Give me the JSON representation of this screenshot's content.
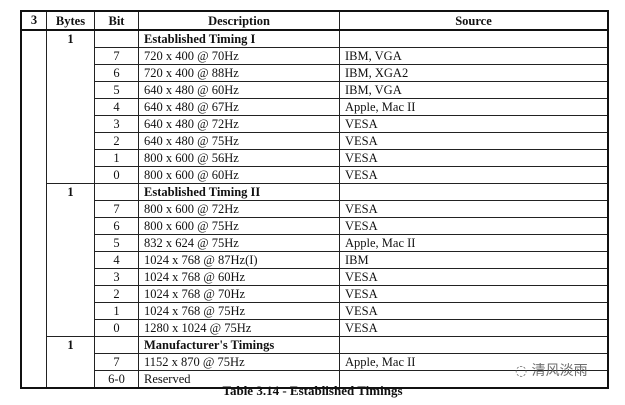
{
  "headers": [
    "3",
    "Bytes",
    "Bit",
    "Description",
    "Source"
  ],
  "groups": [
    {
      "bytes": "1",
      "title": "Established Timing I",
      "rows": [
        {
          "bit": "7",
          "desc": "720 x 400 @ 70Hz",
          "source": "IBM, VGA"
        },
        {
          "bit": "6",
          "desc": "720 x 400 @ 88Hz",
          "source": "IBM, XGA2"
        },
        {
          "bit": "5",
          "desc": "640 x 480 @ 60Hz",
          "source": "IBM, VGA"
        },
        {
          "bit": "4",
          "desc": "640 x 480 @ 67Hz",
          "source": "Apple, Mac II"
        },
        {
          "bit": "3",
          "desc": "640 x 480 @ 72Hz",
          "source": "VESA"
        },
        {
          "bit": "2",
          "desc": "640 x 480 @ 75Hz",
          "source": "VESA"
        },
        {
          "bit": "1",
          "desc": "800 x 600 @ 56Hz",
          "source": "VESA"
        },
        {
          "bit": "0",
          "desc": "800 x 600 @ 60Hz",
          "source": "VESA"
        }
      ]
    },
    {
      "bytes": "1",
      "title": "Established Timing II",
      "rows": [
        {
          "bit": "7",
          "desc": "800 x 600 @ 72Hz",
          "source": "VESA"
        },
        {
          "bit": "6",
          "desc": "800 x 600 @ 75Hz",
          "source": "VESA"
        },
        {
          "bit": "5",
          "desc": "832 x 624 @ 75Hz",
          "source": "Apple, Mac II"
        },
        {
          "bit": "4",
          "desc": "1024 x 768 @ 87Hz(I)",
          "source": "IBM"
        },
        {
          "bit": "3",
          "desc": "1024 x 768 @ 60Hz",
          "source": "VESA"
        },
        {
          "bit": "2",
          "desc": "1024 x 768 @ 70Hz",
          "source": "VESA"
        },
        {
          "bit": "1",
          "desc": "1024 x 768 @ 75Hz",
          "source": "VESA"
        },
        {
          "bit": "0",
          "desc": "1280 x 1024 @ 75Hz",
          "source": "VESA"
        }
      ]
    },
    {
      "bytes": "1",
      "title": "Manufacturer's Timings",
      "rows": [
        {
          "bit": "7",
          "desc": "1152 x 870 @ 75Hz",
          "source": "Apple, Mac II"
        },
        {
          "bit": "6-0",
          "desc": "Reserved",
          "source": ""
        }
      ]
    }
  ],
  "caption": "Table 3.14 - Established Timings",
  "watermark": "清风淡雨"
}
